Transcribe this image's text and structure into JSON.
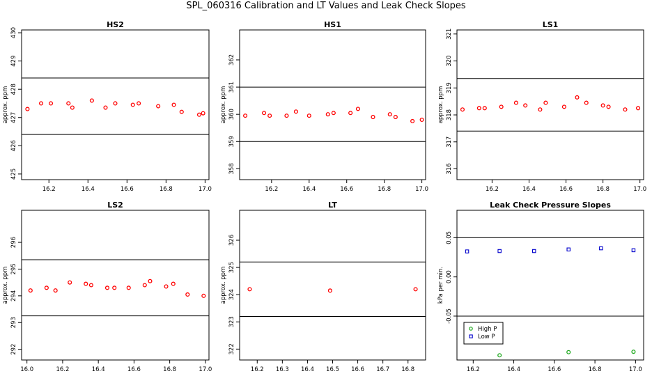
{
  "title": "SPL_060316  Calibration and LT Values and Leak Check Slopes",
  "colors": {
    "points": "#ff0000",
    "high_p": "#22aa22",
    "low_p": "#0000cc",
    "axis": "#000000"
  },
  "chart_data": [
    {
      "id": "hs2",
      "type": "scatter",
      "title": "HS2",
      "ylabel": "approx. ppm",
      "xlim": [
        16.06,
        17.02
      ],
      "ylim": [
        424.8,
        430.1
      ],
      "xticks": [
        16.2,
        16.4,
        16.6,
        16.8,
        17.0
      ],
      "xtick_labels": [
        "16.2",
        "16.4",
        "16.6",
        "16.8",
        "17.0"
      ],
      "yticks": [
        425,
        426,
        427,
        428,
        429,
        430
      ],
      "ytick_labels": [
        "425",
        "426",
        "427",
        "428",
        "429",
        "430"
      ],
      "hlines": [
        428.4,
        426.4
      ],
      "series": [
        {
          "x": [
            16.09,
            16.16,
            16.21,
            16.3,
            16.32,
            16.42,
            16.49,
            16.54,
            16.63,
            16.66,
            16.76,
            16.84,
            16.88,
            16.97,
            16.99
          ],
          "y": [
            427.3,
            427.5,
            427.5,
            427.5,
            427.35,
            427.6,
            427.35,
            427.5,
            427.45,
            427.5,
            427.4,
            427.45,
            427.2,
            427.1,
            427.15
          ]
        }
      ]
    },
    {
      "id": "hs1",
      "type": "scatter",
      "title": "HS1",
      "ylabel": "approx. ppm",
      "xlim": [
        16.03,
        17.02
      ],
      "ylim": [
        357.6,
        363.1
      ],
      "xticks": [
        16.2,
        16.4,
        16.6,
        16.8,
        17.0
      ],
      "xtick_labels": [
        "16.2",
        "16.4",
        "16.6",
        "16.8",
        "17.0"
      ],
      "yticks": [
        358,
        359,
        360,
        361,
        362
      ],
      "ytick_labels": [
        "358",
        "359",
        "360",
        "361",
        "362"
      ],
      "hlines": [
        361.0,
        359.0
      ],
      "series": [
        {
          "x": [
            16.06,
            16.16,
            16.19,
            16.28,
            16.33,
            16.4,
            16.5,
            16.53,
            16.62,
            16.66,
            16.74,
            16.83,
            16.86,
            16.95,
            17.0
          ],
          "y": [
            359.95,
            360.05,
            359.95,
            359.95,
            360.1,
            359.95,
            360.0,
            360.05,
            360.05,
            360.2,
            359.9,
            360.0,
            359.9,
            359.75,
            359.8
          ]
        }
      ]
    },
    {
      "id": "ls1",
      "type": "scatter",
      "title": "LS1",
      "ylabel": "approx. ppm",
      "xlim": [
        16.01,
        17.02
      ],
      "ylim": [
        315.6,
        321.15
      ],
      "xticks": [
        16.2,
        16.4,
        16.6,
        16.8,
        17.0
      ],
      "xtick_labels": [
        "16.2",
        "16.4",
        "16.6",
        "16.8",
        "17.0"
      ],
      "yticks": [
        316,
        317,
        318,
        319,
        320,
        321
      ],
      "ytick_labels": [
        "316",
        "317",
        "318",
        "319",
        "320",
        "321"
      ],
      "hlines": [
        319.35,
        317.4
      ],
      "series": [
        {
          "x": [
            16.04,
            16.13,
            16.16,
            16.25,
            16.33,
            16.38,
            16.46,
            16.49,
            16.59,
            16.66,
            16.71,
            16.8,
            16.83,
            16.92,
            16.99
          ],
          "y": [
            318.2,
            318.25,
            318.25,
            318.3,
            318.45,
            318.35,
            318.2,
            318.45,
            318.3,
            318.65,
            318.45,
            318.35,
            318.3,
            318.2,
            318.25
          ]
        }
      ]
    },
    {
      "id": "ls2",
      "type": "scatter",
      "title": "LS2",
      "ylabel": "approx. ppm",
      "xlim": [
        15.97,
        17.02
      ],
      "ylim": [
        291.6,
        297.2
      ],
      "xticks": [
        16.0,
        16.2,
        16.4,
        16.6,
        16.8,
        17.0
      ],
      "xtick_labels": [
        "16.0",
        "16.2",
        "16.4",
        "16.6",
        "16.8",
        "17.0"
      ],
      "yticks": [
        292,
        293,
        294,
        295,
        296
      ],
      "ytick_labels": [
        "292",
        "293",
        "294",
        "295",
        "296"
      ],
      "hlines": [
        295.35,
        293.25
      ],
      "series": [
        {
          "x": [
            16.02,
            16.11,
            16.16,
            16.24,
            16.33,
            16.36,
            16.45,
            16.49,
            16.57,
            16.66,
            16.69,
            16.78,
            16.82,
            16.9,
            16.99
          ],
          "y": [
            294.2,
            294.3,
            294.2,
            294.5,
            294.45,
            294.4,
            294.3,
            294.3,
            294.3,
            294.4,
            294.55,
            294.35,
            294.45,
            294.05,
            294.0
          ]
        }
      ]
    },
    {
      "id": "lt",
      "type": "scatter",
      "title": "LT",
      "ylabel": "approx. ppm",
      "xlim": [
        16.13,
        16.87
      ],
      "ylim": [
        321.6,
        327.1
      ],
      "xticks": [
        16.2,
        16.3,
        16.4,
        16.5,
        16.6,
        16.7,
        16.8
      ],
      "xtick_labels": [
        "16.2",
        "16.3",
        "16.4",
        "16.5",
        "16.6",
        "16.7",
        "16.8"
      ],
      "yticks": [
        322,
        323,
        324,
        325,
        326
      ],
      "ytick_labels": [
        "322",
        "323",
        "324",
        "325",
        "326"
      ],
      "hlines": [
        325.2,
        323.2
      ],
      "series": [
        {
          "x": [
            16.17,
            16.49,
            16.83
          ],
          "y": [
            324.2,
            324.15,
            324.2
          ]
        }
      ]
    },
    {
      "id": "leak",
      "type": "scatter",
      "title": "Leak Check Pressure Slopes",
      "ylabel": "kPa per min.",
      "xlim": [
        16.12,
        17.04
      ],
      "ylim": [
        -0.106,
        0.085
      ],
      "xticks": [
        16.2,
        16.4,
        16.6,
        16.8,
        17.0
      ],
      "xtick_labels": [
        "16.2",
        "16.4",
        "16.6",
        "16.8",
        "17.0"
      ],
      "yticks": [
        -0.05,
        0.0,
        0.05
      ],
      "ytick_labels": [
        "-0.05",
        "0.00",
        "0.05"
      ],
      "hlines": [
        0.05,
        -0.05
      ],
      "series": [
        {
          "name": "High P",
          "x": [
            16.33,
            16.67,
            16.99
          ],
          "y": [
            -0.1,
            -0.096,
            -0.0955
          ]
        },
        {
          "name": "Low P",
          "x": [
            16.17,
            16.33,
            16.5,
            16.67,
            16.83,
            16.99
          ],
          "y": [
            0.0325,
            0.033,
            0.033,
            0.035,
            0.0365,
            0.034
          ]
        }
      ],
      "legend": {
        "position": "bottom-left",
        "entries": [
          "High P",
          "Low P"
        ]
      }
    }
  ]
}
